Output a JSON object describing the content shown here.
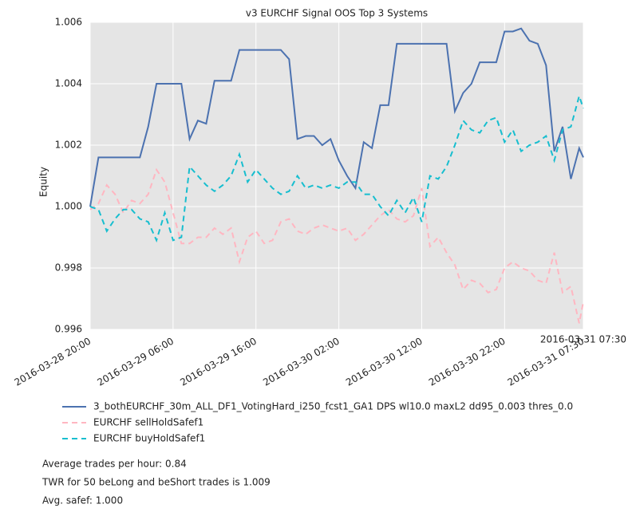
{
  "chart_data": {
    "type": "line",
    "title": "v3 EURCHF Signal OOS Top 3 Systems",
    "y_label": "Equity",
    "x": [
      "2016-03-28 20:00",
      "2016-03-28 21:00",
      "2016-03-28 22:00",
      "2016-03-28 23:00",
      "2016-03-29 00:00",
      "2016-03-29 01:00",
      "2016-03-29 02:00",
      "2016-03-29 03:00",
      "2016-03-29 04:00",
      "2016-03-29 05:00",
      "2016-03-29 06:00",
      "2016-03-29 07:00",
      "2016-03-29 08:00",
      "2016-03-29 09:00",
      "2016-03-29 10:00",
      "2016-03-29 11:00",
      "2016-03-29 12:00",
      "2016-03-29 13:00",
      "2016-03-29 14:00",
      "2016-03-29 15:00",
      "2016-03-29 16:00",
      "2016-03-29 17:00",
      "2016-03-29 18:00",
      "2016-03-29 19:00",
      "2016-03-29 20:00",
      "2016-03-29 21:00",
      "2016-03-29 22:00",
      "2016-03-29 23:00",
      "2016-03-30 00:00",
      "2016-03-30 01:00",
      "2016-03-30 02:00",
      "2016-03-30 03:00",
      "2016-03-30 04:00",
      "2016-03-30 05:00",
      "2016-03-30 06:00",
      "2016-03-30 07:00",
      "2016-03-30 08:00",
      "2016-03-30 09:00",
      "2016-03-30 10:00",
      "2016-03-30 11:00",
      "2016-03-30 12:00",
      "2016-03-30 13:00",
      "2016-03-30 14:00",
      "2016-03-30 15:00",
      "2016-03-30 16:00",
      "2016-03-30 17:00",
      "2016-03-30 18:00",
      "2016-03-30 19:00",
      "2016-03-30 20:00",
      "2016-03-30 21:00",
      "2016-03-30 22:00",
      "2016-03-30 23:00",
      "2016-03-31 00:00",
      "2016-03-31 01:00",
      "2016-03-31 02:00",
      "2016-03-31 03:00",
      "2016-03-31 04:00",
      "2016-03-31 05:00",
      "2016-03-31 06:00",
      "2016-03-31 07:00",
      "2016-03-31 07:30"
    ],
    "series": [
      {
        "name": "3_bothEURCHF_30m_ALL_DF1_VotingHard_i250_fcst1_GA1 DPS wl10.0 maxL2 dd95_0.003 thres_0.0",
        "color": "#4c72b0",
        "dash": "solid",
        "values": [
          1.0,
          1.0016,
          1.0016,
          1.0016,
          1.0016,
          1.0016,
          1.0016,
          1.0026,
          1.004,
          1.004,
          1.004,
          1.004,
          1.0022,
          1.0028,
          1.0027,
          1.0041,
          1.0041,
          1.0041,
          1.0051,
          1.0051,
          1.0051,
          1.0051,
          1.0051,
          1.0051,
          1.0048,
          1.0022,
          1.0023,
          1.0023,
          1.002,
          1.0022,
          1.0015,
          1.001,
          1.0006,
          1.0021,
          1.0019,
          1.0033,
          1.0033,
          1.0053,
          1.0053,
          1.0053,
          1.0053,
          1.0053,
          1.0053,
          1.0053,
          1.0031,
          1.0037,
          1.004,
          1.0047,
          1.0047,
          1.0047,
          1.0057,
          1.0057,
          1.0058,
          1.0054,
          1.0053,
          1.0046,
          1.0018,
          1.0026,
          1.0009,
          1.0019,
          1.0016
        ]
      },
      {
        "name": "EURCHF sellHoldSafef1",
        "color": "#ffb6c1",
        "dash": "dashed",
        "values": [
          0.9999,
          1.0001,
          1.0007,
          1.0004,
          0.9998,
          1.0002,
          1.0001,
          1.0004,
          1.0012,
          1.0008,
          0.9998,
          0.9988,
          0.9988,
          0.999,
          0.999,
          0.9993,
          0.9991,
          0.9993,
          0.9982,
          0.999,
          0.9992,
          0.9988,
          0.9989,
          0.9995,
          0.9996,
          0.9992,
          0.9991,
          0.9993,
          0.9994,
          0.9993,
          0.9992,
          0.9993,
          0.9989,
          0.9991,
          0.9994,
          0.9997,
          0.9999,
          0.9996,
          0.9995,
          0.9997,
          1.0006,
          0.9987,
          0.999,
          0.9985,
          0.9981,
          0.9973,
          0.9976,
          0.9975,
          0.9972,
          0.9973,
          0.998,
          0.9982,
          0.998,
          0.9979,
          0.9976,
          0.9975,
          0.9985,
          0.9972,
          0.9974,
          0.9962,
          0.9969
        ]
      },
      {
        "name": "EURCHF buyHoldSafef1",
        "color": "#17becf",
        "dash": "dashed",
        "values": [
          1.0,
          0.9999,
          0.9992,
          0.9996,
          0.9999,
          0.9999,
          0.9996,
          0.9995,
          0.9989,
          0.9998,
          0.9989,
          0.999,
          1.0013,
          1.001,
          1.0007,
          1.0005,
          1.0007,
          1.001,
          1.0017,
          1.0008,
          1.0012,
          1.0009,
          1.0006,
          1.0004,
          1.0005,
          1.001,
          1.0006,
          1.0007,
          1.0006,
          1.0007,
          1.0006,
          1.0008,
          1.0008,
          1.0004,
          1.0004,
          1.0,
          0.9997,
          1.0002,
          0.9998,
          1.0003,
          0.9995,
          1.001,
          1.0009,
          1.0013,
          1.002,
          1.0028,
          1.0025,
          1.0024,
          1.0028,
          1.0029,
          1.0021,
          1.0025,
          1.0018,
          1.002,
          1.0021,
          1.0023,
          1.0015,
          1.0025,
          1.0026,
          1.0036,
          1.0032
        ]
      }
    ],
    "xlim": [
      "2016-03-28 20:00",
      "2016-03-31 07:30"
    ],
    "xticks": [
      "2016-03-28 20:00",
      "2016-03-29 06:00",
      "2016-03-29 16:00",
      "2016-03-30 02:00",
      "2016-03-30 12:00",
      "2016-03-30 22:00",
      "2016-03-31 07:30"
    ],
    "ylim": [
      0.996,
      1.006
    ],
    "yticks": [
      0.996,
      0.998,
      {
        "value": 1.0,
        "label": "1.000"
      },
      1.002,
      1.004,
      1.006
    ],
    "grid": true,
    "legend": "below",
    "notes": [
      "Average trades per hour: 0.84",
      "TWR for 50 beLong and beShort trades is 1.009",
      "Avg. safef: 1.000"
    ]
  }
}
